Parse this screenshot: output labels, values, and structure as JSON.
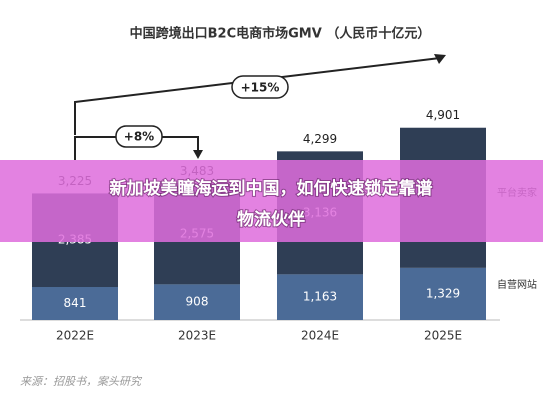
{
  "chart_data": {
    "type": "stacked-bar",
    "title": "中国跨境出口B2C电商市场GMV （人民币十亿元）",
    "categories": [
      "2022E",
      "2023E",
      "2024E",
      "2025E"
    ],
    "series": [
      {
        "name": "自营网站",
        "color": "#4b6b97",
        "values": [
          841,
          908,
          1163,
          1329
        ],
        "value_labels": [
          "841",
          "908",
          "1,163",
          "1,329"
        ]
      },
      {
        "name": "平台卖家",
        "color": "#2f3e55",
        "values": [
          2385,
          2575,
          3136,
          3572
        ],
        "value_labels": [
          "2,385",
          "2,575",
          "3,136",
          null
        ]
      }
    ],
    "totals": {
      "values": [
        3225,
        3483,
        4299,
        4901
      ],
      "value_labels": [
        "3,225",
        "3,483",
        "4,299",
        "4,901"
      ]
    },
    "ylim": [
      0,
      5200
    ],
    "annotations": [
      "+8%",
      "+15%"
    ],
    "source": "来源：招股书，案头研究",
    "banner": "新加坡美瞳海运到中国，如何快速锁定靠谱物流伙伴"
  }
}
